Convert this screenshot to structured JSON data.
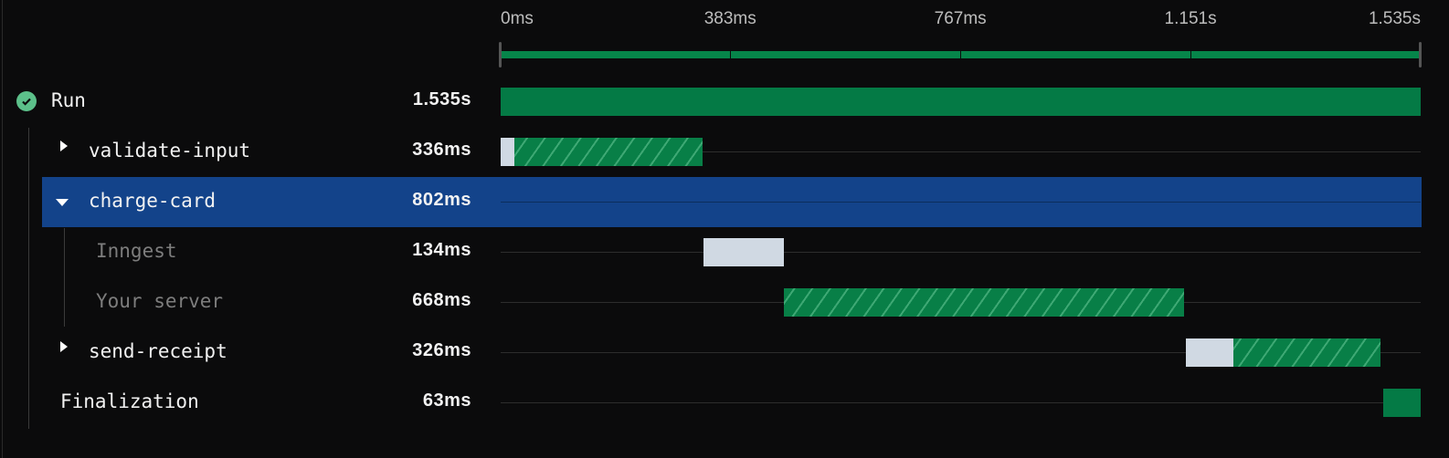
{
  "timeline": {
    "total_ms": 1535,
    "ticks": [
      {
        "ms": 0,
        "label": "0ms"
      },
      {
        "ms": 383,
        "label": "383ms"
      },
      {
        "ms": 767,
        "label": "767ms"
      },
      {
        "ms": 1151,
        "label": "1.151s"
      },
      {
        "ms": 1535,
        "label": "1.535s"
      }
    ]
  },
  "colors": {
    "success": "#047a45",
    "queue": "#d0d9e3",
    "selected": "#13438a",
    "status_ok": "#5cc08a"
  },
  "rows": [
    {
      "label": "Run",
      "duration": "1.535s",
      "status_icon": "check-circle-icon",
      "segments": [
        {
          "type": "solid",
          "start": 0,
          "end": 1535
        }
      ]
    },
    {
      "label": "validate-input",
      "duration": "336ms",
      "expander": "collapsed",
      "segments": [
        {
          "type": "queue",
          "start": 0,
          "end": 23
        },
        {
          "type": "hatch",
          "start": 23,
          "end": 337
        }
      ]
    },
    {
      "label": "charge-card",
      "duration": "802ms",
      "expander": "expanded",
      "selected": true,
      "segments": []
    },
    {
      "label": "Inngest",
      "duration": "134ms",
      "dim": true,
      "segments": [
        {
          "type": "queue",
          "start": 338,
          "end": 472
        }
      ]
    },
    {
      "label": "Your server",
      "duration": "668ms",
      "dim": true,
      "segments": [
        {
          "type": "hatch",
          "start": 472,
          "end": 1140
        }
      ]
    },
    {
      "label": "send-receipt",
      "duration": "326ms",
      "expander": "collapsed",
      "segments": [
        {
          "type": "queue",
          "start": 1143,
          "end": 1222
        },
        {
          "type": "hatch",
          "start": 1222,
          "end": 1468
        }
      ]
    },
    {
      "label": "Finalization",
      "duration": "63ms",
      "segments": [
        {
          "type": "solid",
          "start": 1472,
          "end": 1535
        }
      ]
    }
  ]
}
